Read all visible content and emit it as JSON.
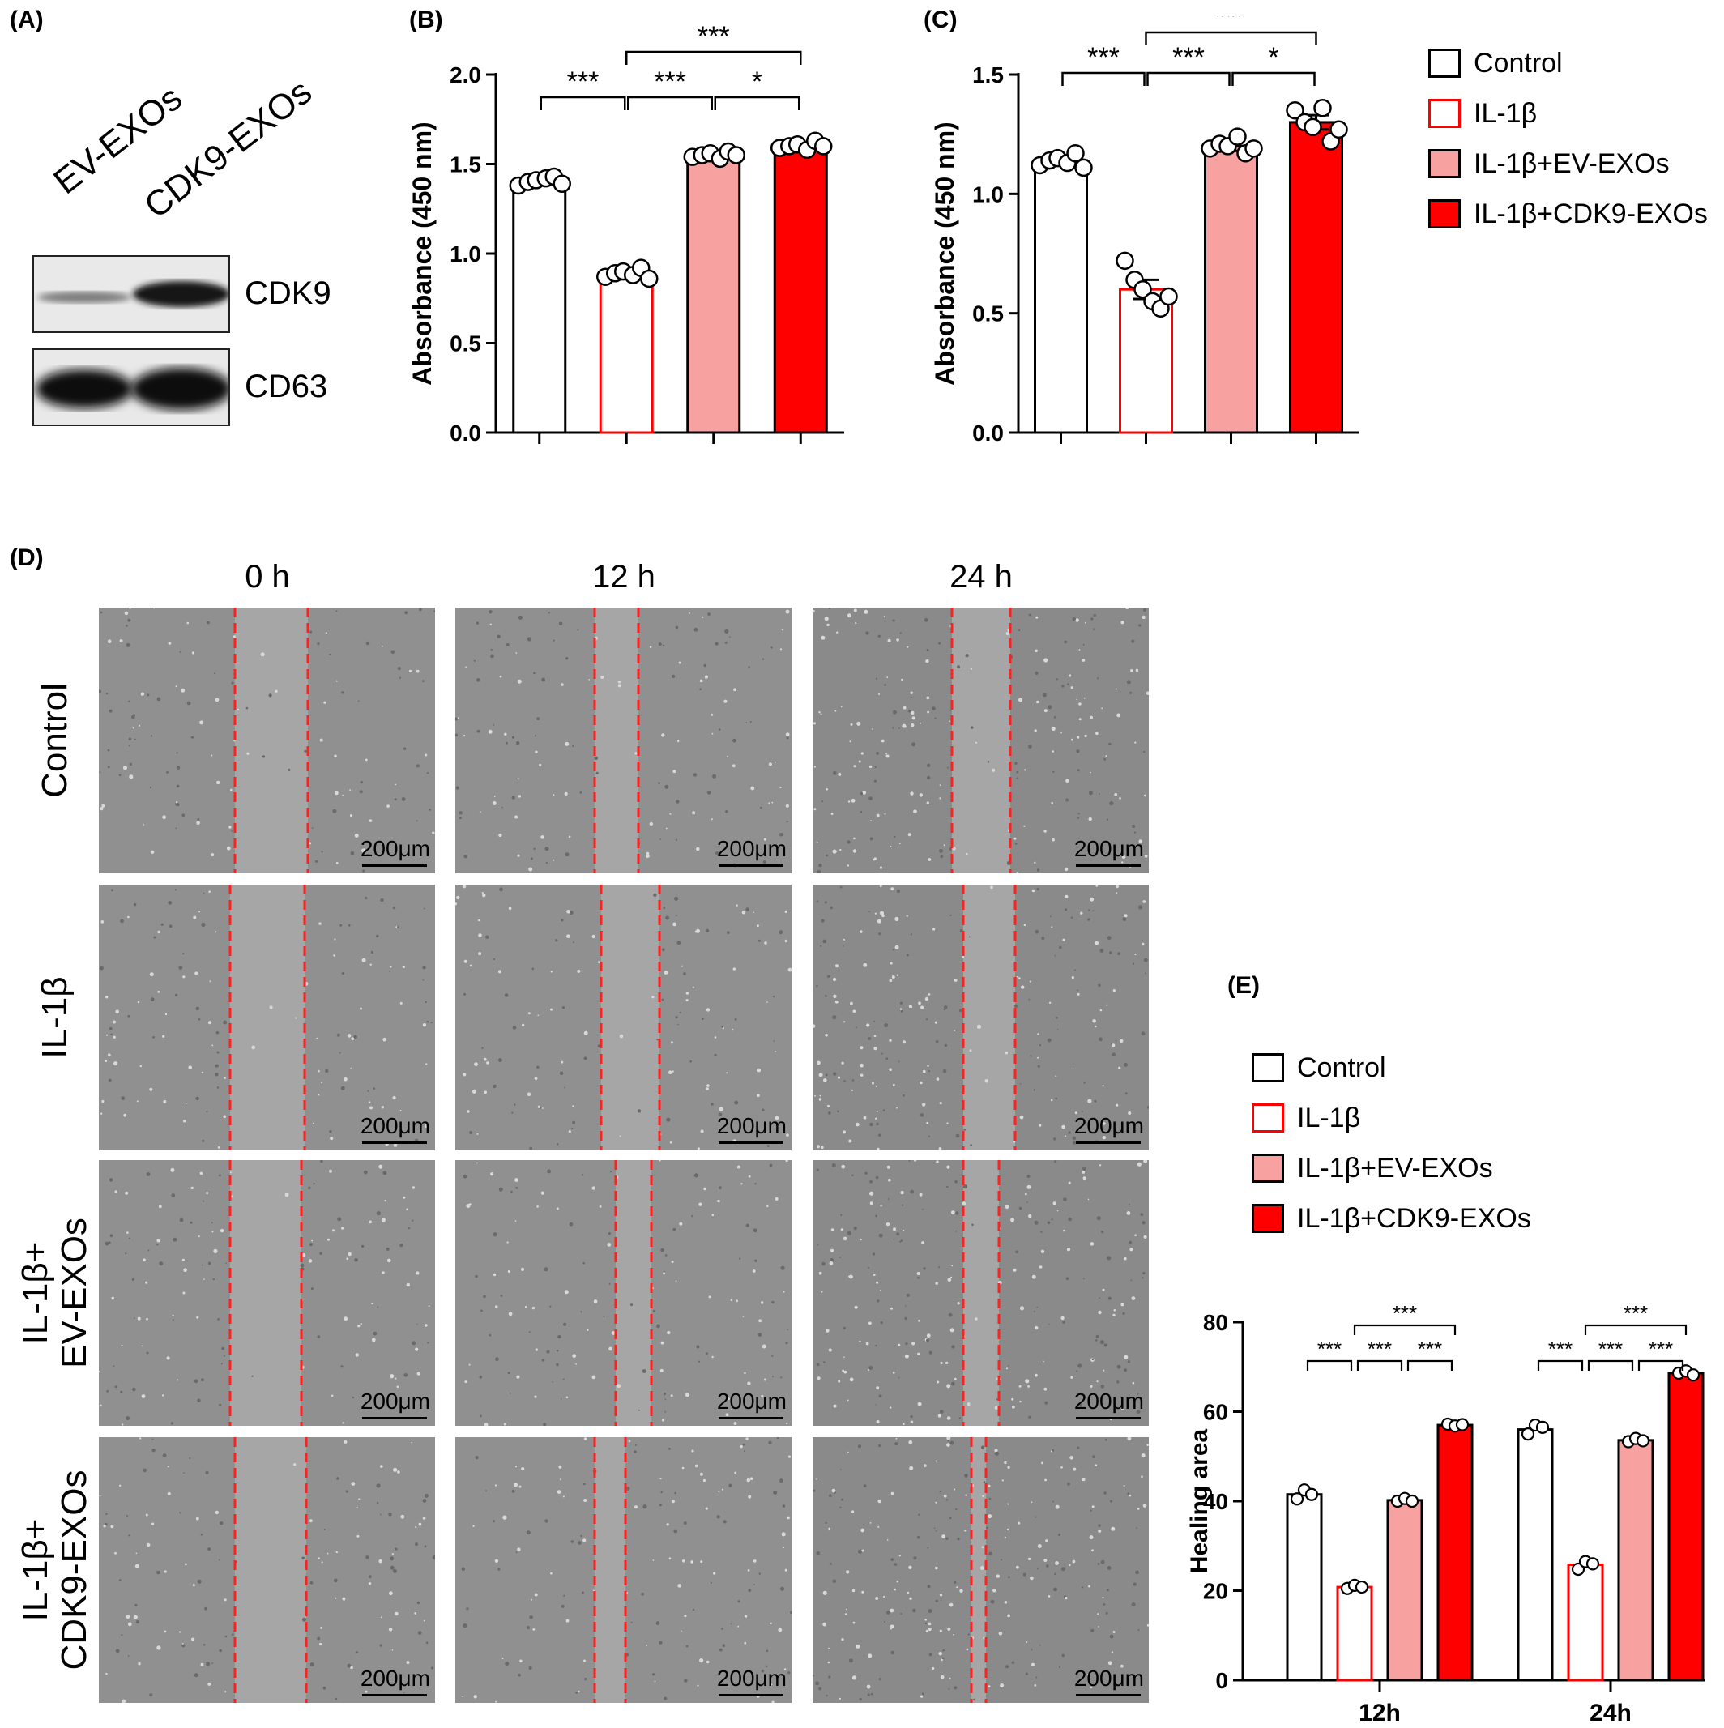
{
  "panel_labels": {
    "a": "(A)",
    "b": "(B)",
    "c": "(C)",
    "d": "(D)",
    "e": "(E)"
  },
  "panel_a": {
    "lanes": [
      "EV-EXOs",
      "CDK9-EXOs"
    ],
    "bands": [
      "CDK9",
      "CD63"
    ]
  },
  "legend_groups": [
    {
      "label": "Control",
      "fill": "#ffffff",
      "edge": "#000000"
    },
    {
      "label": "IL-1β",
      "fill": "#ffffff",
      "edge": "#ff0000"
    },
    {
      "label": "IL-1β+EV-EXOs",
      "fill": "#f7a1a1",
      "edge": "#000000"
    },
    {
      "label": "IL-1β+CDK9-EXOs",
      "fill": "#ff0000",
      "edge": "#000000"
    }
  ],
  "panel_d": {
    "times": [
      "0 h",
      "12 h",
      "24 h"
    ],
    "rows": [
      {
        "lines": [
          "Control"
        ]
      },
      {
        "lines": [
          "IL-1β"
        ]
      },
      {
        "lines": [
          "IL-1β+",
          "EV-EXOs"
        ]
      },
      {
        "lines": [
          "IL-1β+",
          "CDK9-EXOs"
        ]
      }
    ],
    "scale_bar": "200μm"
  },
  "chart_data": [
    {
      "id": "B",
      "type": "bar",
      "categories": [
        "Control",
        "IL-1β",
        "IL-1β+EV-EXOs",
        "IL-1β+CDK9-EXOs"
      ],
      "values": [
        1.41,
        0.89,
        1.55,
        1.6
      ],
      "errors": [
        0.02,
        0.02,
        0.02,
        0.02
      ],
      "points": [
        [
          1.38,
          1.4,
          1.41,
          1.42,
          1.43,
          1.39
        ],
        [
          0.87,
          0.89,
          0.9,
          0.88,
          0.92,
          0.86
        ],
        [
          1.54,
          1.55,
          1.56,
          1.53,
          1.57,
          1.55
        ],
        [
          1.59,
          1.6,
          1.61,
          1.58,
          1.63,
          1.6
        ]
      ],
      "ylabel": "Absorbance (450 nm)",
      "ylim": [
        0,
        2.0
      ],
      "yticks": [
        "0.0",
        "0.5",
        "1.0",
        "1.5",
        "2.0"
      ],
      "significance": [
        {
          "from": 0,
          "to": 1,
          "label": "***",
          "level": 0
        },
        {
          "from": 1,
          "to": 2,
          "label": "***",
          "level": 0
        },
        {
          "from": 2,
          "to": 3,
          "label": "*",
          "level": 0
        },
        {
          "from": 1,
          "to": 3,
          "label": "***",
          "level": 1
        }
      ]
    },
    {
      "id": "C",
      "type": "bar",
      "categories": [
        "Control",
        "IL-1β",
        "IL-1β+EV-EXOs",
        "IL-1β+CDK9-EXOs"
      ],
      "values": [
        1.14,
        0.6,
        1.2,
        1.3
      ],
      "errors": [
        0.02,
        0.04,
        0.02,
        0.03
      ],
      "points": [
        [
          1.12,
          1.14,
          1.15,
          1.13,
          1.17,
          1.11
        ],
        [
          0.72,
          0.64,
          0.6,
          0.55,
          0.52,
          0.57
        ],
        [
          1.19,
          1.21,
          1.2,
          1.24,
          1.17,
          1.19
        ],
        [
          1.35,
          1.3,
          1.28,
          1.36,
          1.22,
          1.27
        ]
      ],
      "ylabel": "Absorbance (450 nm)",
      "ylim": [
        0,
        1.5
      ],
      "yticks": [
        "0.0",
        "0.5",
        "1.0",
        "1.5"
      ],
      "significance": [
        {
          "from": 0,
          "to": 1,
          "label": "***",
          "level": 0
        },
        {
          "from": 1,
          "to": 2,
          "label": "***",
          "level": 0
        },
        {
          "from": 2,
          "to": 3,
          "label": "*",
          "level": 0
        },
        {
          "from": 1,
          "to": 3,
          "label": "***",
          "level": 1
        }
      ]
    },
    {
      "id": "E",
      "type": "bar",
      "x_groups": [
        "12h",
        "24h"
      ],
      "series": [
        {
          "name": "Control",
          "values": [
            41.5,
            56.0
          ],
          "points": [
            [
              40.5,
              42.5,
              41.5
            ],
            [
              55.0,
              57.0,
              56.5
            ]
          ]
        },
        {
          "name": "IL-1β",
          "values": [
            20.8,
            25.8
          ],
          "points": [
            [
              20.5,
              21.2,
              20.8
            ],
            [
              24.8,
              26.5,
              26.0
            ]
          ]
        },
        {
          "name": "IL-1β+EV-EXOs",
          "values": [
            40.2,
            53.6
          ],
          "points": [
            [
              40.0,
              40.6,
              40.0
            ],
            [
              53.3,
              54.0,
              53.5
            ]
          ]
        },
        {
          "name": "IL-1β+CDK9-EXOs",
          "values": [
            57.0,
            68.6
          ],
          "points": [
            [
              57.2,
              56.8,
              57.1
            ],
            [
              68.6,
              69.1,
              68.2
            ]
          ]
        }
      ],
      "ylabel": "Healing area",
      "ylim": [
        0,
        80
      ],
      "yticks": [
        "0",
        "20",
        "40",
        "60",
        "80"
      ],
      "significance": [
        {
          "group": 0,
          "from": 0,
          "to": 1,
          "label": "***",
          "level": 0
        },
        {
          "group": 0,
          "from": 1,
          "to": 2,
          "label": "***",
          "level": 0
        },
        {
          "group": 0,
          "from": 2,
          "to": 3,
          "label": "***",
          "level": 0
        },
        {
          "group": 0,
          "from": 1,
          "to": 3,
          "label": "***",
          "level": 1
        },
        {
          "group": 1,
          "from": 0,
          "to": 1,
          "label": "***",
          "level": 0
        },
        {
          "group": 1,
          "from": 1,
          "to": 2,
          "label": "***",
          "level": 0
        },
        {
          "group": 1,
          "from": 2,
          "to": 3,
          "label": "***",
          "level": 0
        },
        {
          "group": 1,
          "from": 1,
          "to": 3,
          "label": "***",
          "level": 1
        }
      ]
    }
  ]
}
